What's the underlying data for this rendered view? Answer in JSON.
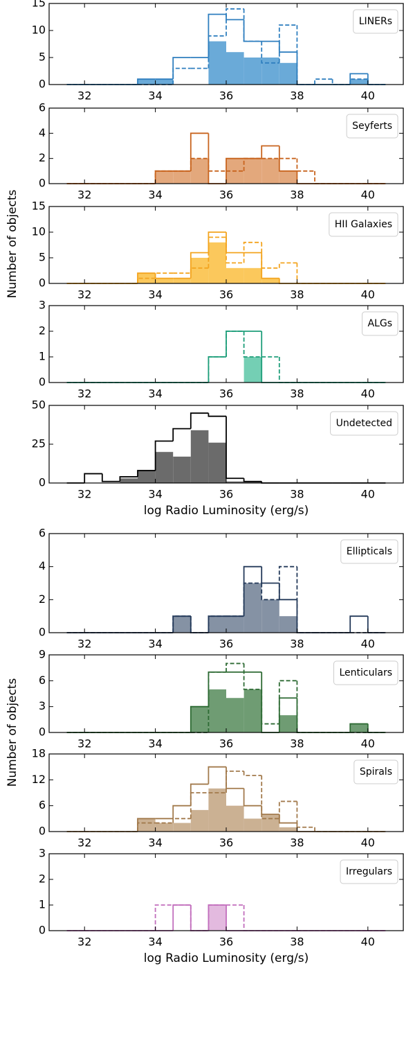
{
  "chart_data": [
    {
      "type": "histogram",
      "legend": "LINERs",
      "color": "#2f7fbf",
      "fill_color": "#6aaad8",
      "bins": [
        31.5,
        32,
        32.5,
        33,
        33.5,
        34,
        34.5,
        35,
        35.5,
        36,
        36.5,
        37,
        37.5,
        38,
        38.5,
        39,
        39.5,
        40,
        40.5
      ],
      "xlim": [
        31,
        41
      ],
      "xticks": [
        32,
        34,
        36,
        38,
        40
      ],
      "ylim": [
        0,
        15
      ],
      "yticks": [
        0,
        5,
        10,
        15
      ],
      "series": [
        {
          "style": "filled",
          "values": [
            0,
            0,
            0,
            0,
            1,
            1,
            0,
            0,
            8,
            6,
            5,
            5,
            4,
            0,
            0,
            0,
            1,
            0
          ]
        },
        {
          "style": "solid",
          "values": [
            0,
            0,
            0,
            0,
            1,
            1,
            5,
            5,
            13,
            12,
            8,
            8,
            6,
            0,
            0,
            0,
            2,
            0
          ]
        },
        {
          "style": "dashed",
          "values": [
            0,
            0,
            0,
            0,
            0,
            0,
            3,
            3,
            9,
            14,
            8,
            4,
            11,
            0,
            1,
            0,
            1,
            0
          ]
        }
      ]
    },
    {
      "type": "histogram",
      "legend": "Seyferts",
      "color": "#c8641e",
      "fill_color": "#e3a87c",
      "bins": [
        31.5,
        32,
        32.5,
        33,
        33.5,
        34,
        34.5,
        35,
        35.5,
        36,
        36.5,
        37,
        37.5,
        38,
        38.5,
        39,
        39.5,
        40,
        40.5
      ],
      "xlim": [
        31,
        41
      ],
      "xticks": [
        32,
        34,
        36,
        38,
        40
      ],
      "ylim": [
        0,
        6
      ],
      "yticks": [
        0,
        2,
        4,
        6
      ],
      "series": [
        {
          "style": "filled",
          "values": [
            0,
            0,
            0,
            0,
            0,
            1,
            1,
            2,
            0,
            2,
            2,
            2,
            1,
            0,
            0,
            0,
            0,
            0
          ]
        },
        {
          "style": "solid",
          "values": [
            0,
            0,
            0,
            0,
            0,
            1,
            1,
            4,
            0,
            2,
            2,
            3,
            1,
            0,
            0,
            0,
            0,
            0
          ]
        },
        {
          "style": "dashed",
          "values": [
            0,
            0,
            0,
            0,
            0,
            1,
            1,
            2,
            1,
            1,
            2,
            2,
            2,
            1,
            0,
            0,
            0,
            0
          ]
        }
      ]
    },
    {
      "type": "histogram",
      "legend": "HII Galaxies",
      "color": "#f3a41f",
      "fill_color": "#fbc85c",
      "ylabel": "Number of objects",
      "bins": [
        31.5,
        32,
        32.5,
        33,
        33.5,
        34,
        34.5,
        35,
        35.5,
        36,
        36.5,
        37,
        37.5,
        38,
        38.5,
        39,
        39.5,
        40,
        40.5
      ],
      "xlim": [
        31,
        41
      ],
      "xticks": [
        32,
        34,
        36,
        38,
        40
      ],
      "ylim": [
        0,
        15
      ],
      "yticks": [
        0,
        5,
        10,
        15
      ],
      "series": [
        {
          "style": "filled",
          "values": [
            0,
            0,
            0,
            0,
            2,
            1,
            1,
            5,
            8,
            3,
            3,
            1,
            0,
            0,
            0,
            0,
            0,
            0
          ]
        },
        {
          "style": "solid",
          "values": [
            0,
            0,
            0,
            0,
            2,
            1,
            1,
            6,
            10,
            6,
            6,
            1,
            0,
            0,
            0,
            0,
            0,
            0
          ]
        },
        {
          "style": "dashed",
          "values": [
            0,
            0,
            0,
            0,
            1,
            2,
            2,
            3,
            9,
            4,
            8,
            3,
            4,
            0,
            0,
            0,
            0,
            0
          ]
        }
      ]
    },
    {
      "type": "histogram",
      "legend": "ALGs",
      "color": "#1e9e7a",
      "fill_color": "#74cfb4",
      "bins": [
        31.5,
        32,
        32.5,
        33,
        33.5,
        34,
        34.5,
        35,
        35.5,
        36,
        36.5,
        37,
        37.5,
        38,
        38.5,
        39,
        39.5,
        40,
        40.5
      ],
      "xlim": [
        31,
        41
      ],
      "xticks": [
        32,
        34,
        36,
        38,
        40
      ],
      "ylim": [
        0,
        3
      ],
      "yticks": [
        0,
        1,
        2,
        3
      ],
      "series": [
        {
          "style": "filled",
          "values": [
            0,
            0,
            0,
            0,
            0,
            0,
            0,
            0,
            0,
            0,
            1,
            0,
            0,
            0,
            0,
            0,
            0,
            0
          ]
        },
        {
          "style": "solid",
          "values": [
            0,
            0,
            0,
            0,
            0,
            0,
            0,
            0,
            1,
            2,
            2,
            0,
            0,
            0,
            0,
            0,
            0,
            0
          ]
        },
        {
          "style": "dashed",
          "values": [
            0,
            0,
            0,
            0,
            0,
            0,
            0,
            0,
            1,
            2,
            1,
            1,
            0,
            0,
            0,
            0,
            0,
            0
          ]
        }
      ]
    },
    {
      "type": "histogram",
      "legend": "Undetected",
      "color": "#000000",
      "fill_color": "#6b6b6b",
      "xlabel": "log Radio Luminosity (erg/s)",
      "bins": [
        31.5,
        32,
        32.5,
        33,
        33.5,
        34,
        34.5,
        35,
        35.5,
        36,
        36.5,
        37,
        37.5,
        38,
        38.5,
        39,
        39.5,
        40,
        40.5
      ],
      "xlim": [
        31,
        41
      ],
      "xticks": [
        32,
        34,
        36,
        38,
        40
      ],
      "ylim": [
        0,
        50
      ],
      "yticks": [
        0,
        25,
        50
      ],
      "series": [
        {
          "style": "filled",
          "values": [
            0,
            0,
            0,
            3,
            8,
            20,
            17,
            34,
            26,
            1,
            1,
            0,
            0,
            0,
            0,
            0,
            0,
            0
          ]
        },
        {
          "style": "solid",
          "values": [
            0,
            6,
            1,
            4,
            8,
            27,
            35,
            45,
            43,
            3,
            1,
            0,
            0,
            0,
            0,
            0,
            0,
            0
          ]
        }
      ]
    },
    {
      "type": "histogram",
      "legend": "Ellipticals",
      "color": "#243a5a",
      "fill_color": "#8592a4",
      "bins": [
        31.5,
        32,
        32.5,
        33,
        33.5,
        34,
        34.5,
        35,
        35.5,
        36,
        36.5,
        37,
        37.5,
        38,
        38.5,
        39,
        39.5,
        40,
        40.5
      ],
      "xlim": [
        31,
        41
      ],
      "xticks": [
        32,
        34,
        36,
        38,
        40
      ],
      "ylim": [
        0,
        6
      ],
      "yticks": [
        0,
        2,
        4,
        6
      ],
      "series": [
        {
          "style": "filled",
          "values": [
            0,
            0,
            0,
            0,
            0,
            0,
            1,
            0,
            1,
            1,
            3,
            2,
            1,
            0,
            0,
            0,
            0,
            0
          ]
        },
        {
          "style": "solid",
          "values": [
            0,
            0,
            0,
            0,
            0,
            0,
            1,
            0,
            1,
            1,
            4,
            3,
            2,
            0,
            0,
            0,
            1,
            0
          ]
        },
        {
          "style": "dashed",
          "values": [
            0,
            0,
            0,
            0,
            0,
            0,
            1,
            0,
            1,
            1,
            3,
            2,
            4,
            0,
            0,
            0,
            0,
            0
          ]
        }
      ]
    },
    {
      "type": "histogram",
      "legend": "Lenticulars",
      "color": "#2e6b34",
      "fill_color": "#6f9c73",
      "bins": [
        31.5,
        32,
        32.5,
        33,
        33.5,
        34,
        34.5,
        35,
        35.5,
        36,
        36.5,
        37,
        37.5,
        38,
        38.5,
        39,
        39.5,
        40,
        40.5
      ],
      "xlim": [
        31,
        41
      ],
      "xticks": [
        32,
        34,
        36,
        38,
        40
      ],
      "ylim": [
        0,
        9
      ],
      "yticks": [
        0,
        3,
        6,
        9
      ],
      "series": [
        {
          "style": "filled",
          "values": [
            0,
            0,
            0,
            0,
            0,
            0,
            0,
            3,
            5,
            4,
            5,
            0,
            2,
            0,
            0,
            0,
            1,
            0
          ]
        },
        {
          "style": "solid",
          "values": [
            0,
            0,
            0,
            0,
            0,
            0,
            0,
            3,
            7,
            7,
            7,
            0,
            4,
            0,
            0,
            0,
            1,
            0
          ]
        },
        {
          "style": "dashed",
          "values": [
            0,
            0,
            0,
            0,
            0,
            0,
            0,
            0,
            7,
            8,
            5,
            1,
            6,
            0,
            0,
            0,
            0,
            0
          ]
        }
      ]
    },
    {
      "type": "histogram",
      "legend": "Spirals",
      "color": "#a27a4c",
      "fill_color": "#cbb193",
      "ylabel": "Number of objects",
      "bins": [
        31.5,
        32,
        32.5,
        33,
        33.5,
        34,
        34.5,
        35,
        35.5,
        36,
        36.5,
        37,
        37.5,
        38,
        38.5,
        39,
        39.5,
        40,
        40.5
      ],
      "xlim": [
        31,
        41
      ],
      "xticks": [
        32,
        34,
        36,
        38,
        40
      ],
      "ylim": [
        0,
        18
      ],
      "yticks": [
        0,
        6,
        12,
        18
      ],
      "series": [
        {
          "style": "filled",
          "values": [
            0,
            0,
            0,
            0,
            3,
            2,
            2,
            5,
            10,
            6,
            3,
            4,
            1,
            0,
            0,
            0,
            0,
            0
          ]
        },
        {
          "style": "solid",
          "values": [
            0,
            0,
            0,
            0,
            3,
            3,
            6,
            11,
            15,
            10,
            6,
            4,
            2,
            0,
            0,
            0,
            0,
            0
          ]
        },
        {
          "style": "dashed",
          "values": [
            0,
            0,
            0,
            0,
            2,
            2,
            3,
            9,
            9,
            14,
            13,
            3,
            7,
            1,
            0,
            0,
            0,
            0
          ]
        }
      ]
    },
    {
      "type": "histogram",
      "legend": "Irregulars",
      "color": "#c26fbd",
      "fill_color": "#e3badf",
      "xlabel": "log Radio Luminosity (erg/s)",
      "bins": [
        31.5,
        32,
        32.5,
        33,
        33.5,
        34,
        34.5,
        35,
        35.5,
        36,
        36.5,
        37,
        37.5,
        38,
        38.5,
        39,
        39.5,
        40,
        40.5
      ],
      "xlim": [
        31,
        41
      ],
      "xticks": [
        32,
        34,
        36,
        38,
        40
      ],
      "ylim": [
        0,
        3
      ],
      "yticks": [
        0,
        1,
        2,
        3
      ],
      "series": [
        {
          "style": "filled",
          "values": [
            0,
            0,
            0,
            0,
            0,
            0,
            0,
            0,
            1,
            0,
            0,
            0,
            0,
            0,
            0,
            0,
            0,
            0
          ]
        },
        {
          "style": "solid",
          "values": [
            0,
            0,
            0,
            0,
            0,
            0,
            1,
            0,
            1,
            0,
            0,
            0,
            0,
            0,
            0,
            0,
            0,
            0
          ]
        },
        {
          "style": "dashed",
          "values": [
            0,
            0,
            0,
            0,
            0,
            1,
            1,
            0,
            1,
            1,
            0,
            0,
            0,
            0,
            0,
            0,
            0,
            0
          ]
        }
      ]
    }
  ]
}
